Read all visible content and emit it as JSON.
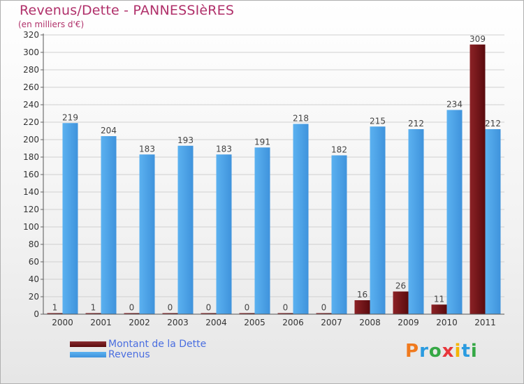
{
  "header": {
    "title": "Revenus/Dette - PANNESSIèRES",
    "subtitle": "(en milliers d'€)"
  },
  "chart_data": {
    "type": "bar",
    "categories": [
      "2000",
      "2001",
      "2002",
      "2003",
      "2004",
      "2005",
      "2006",
      "2007",
      "2008",
      "2009",
      "2010",
      "2011"
    ],
    "series": [
      {
        "name": "Montant de la Dette",
        "values": [
          1,
          1,
          0,
          0,
          0,
          0,
          0,
          0,
          16,
          26,
          11,
          309
        ],
        "color": "#6b0d10"
      },
      {
        "name": "Revenus",
        "values": [
          219,
          204,
          183,
          193,
          183,
          191,
          218,
          182,
          215,
          212,
          234,
          212
        ],
        "color": "#4a9fe3"
      }
    ],
    "ylim": [
      0,
      320
    ],
    "yticks": [
      0,
      20,
      40,
      60,
      80,
      100,
      120,
      140,
      160,
      180,
      200,
      220,
      240,
      260,
      280,
      300,
      320
    ],
    "grid": true,
    "legend": "bottom-left"
  },
  "legend": {
    "items": [
      {
        "label": "Montant de la Dette",
        "color": "#6b0d10"
      },
      {
        "label": "Revenus",
        "color": "#4a9fe3"
      }
    ]
  },
  "logo": {
    "text": "Proxiti",
    "colors": [
      "#f07a1e",
      "#2a9be0",
      "#35a845",
      "#e8363b",
      "#f4b400",
      "#2a9be0",
      "#35a845"
    ]
  }
}
